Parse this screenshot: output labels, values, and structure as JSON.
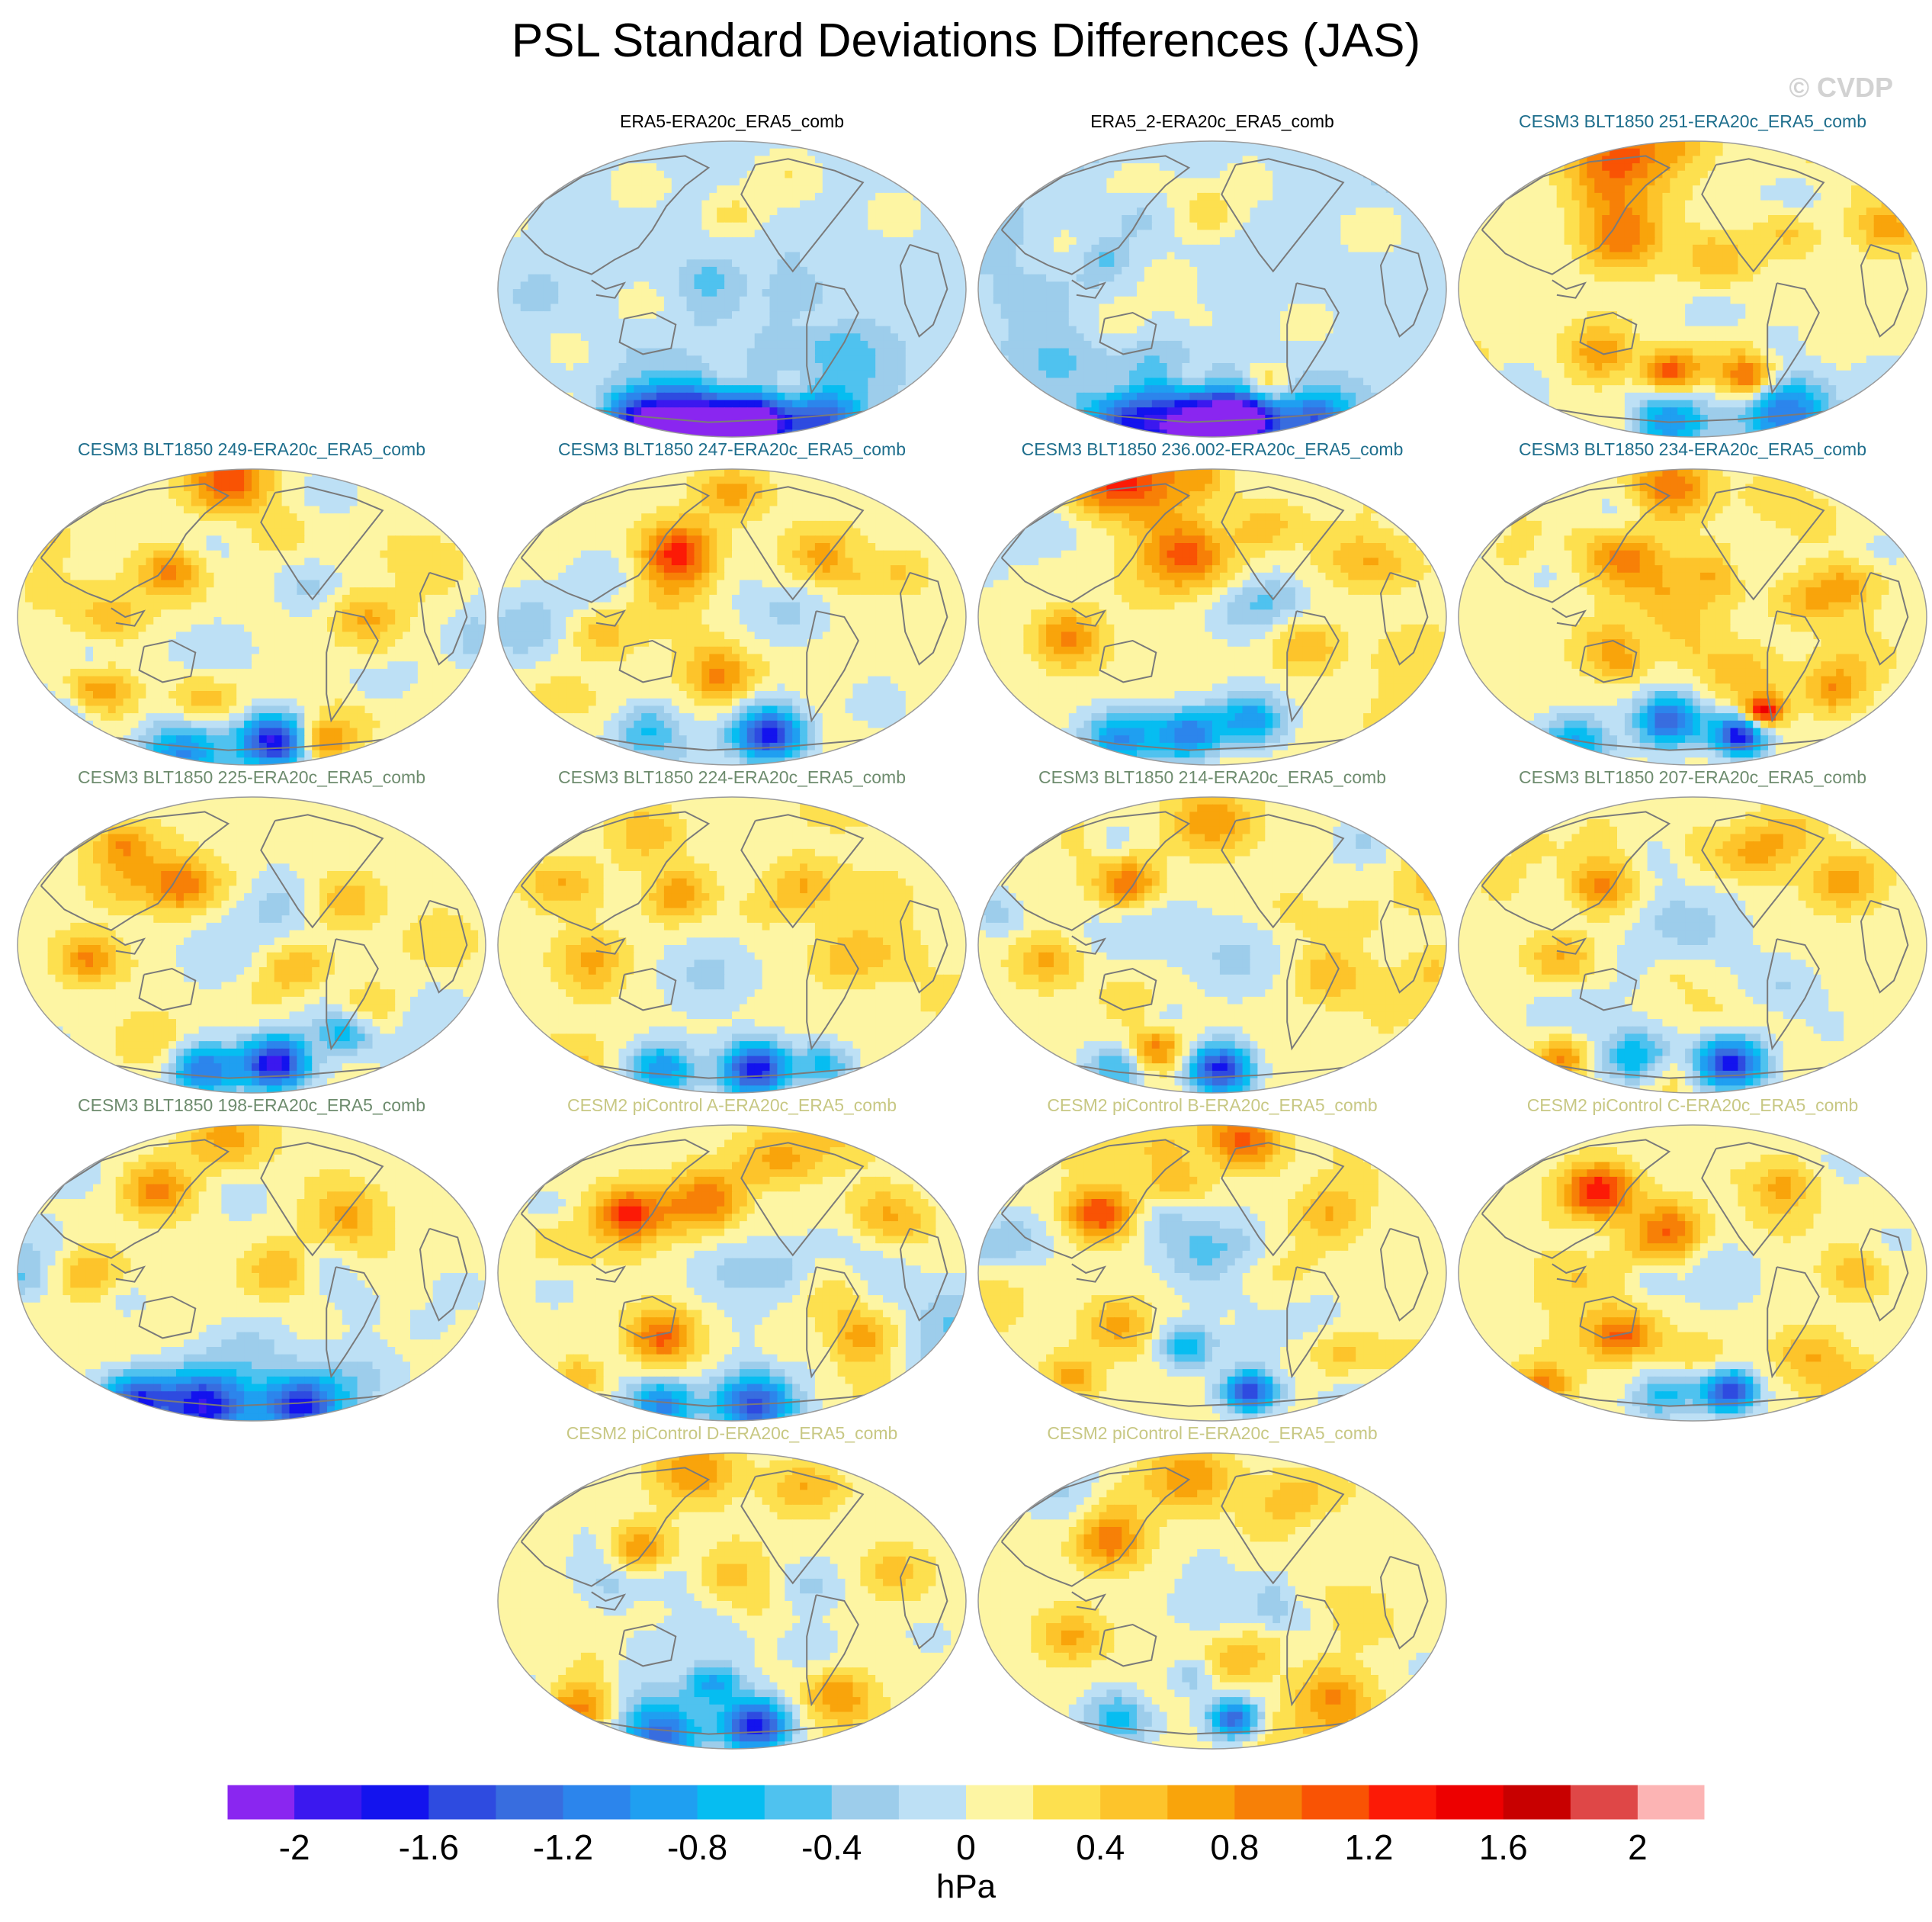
{
  "figure": {
    "title": "PSL Standard Deviations Differences (JAS)",
    "watermark": "© CVDP"
  },
  "chart_data": {
    "type": "heatmap",
    "title": "PSL Standard Deviations Differences (JAS)",
    "projection": "global map (Pacific-centered)",
    "units": "hPa",
    "colorbar": {
      "label": "hPa",
      "levels": [
        -2.2,
        -2,
        -1.8,
        -1.6,
        -1.4,
        -1.2,
        -1,
        -0.8,
        -0.6,
        -0.4,
        -0.2,
        0,
        0.2,
        0.4,
        0.6,
        0.8,
        1,
        1.2,
        1.4,
        1.6,
        1.8,
        2,
        2.2
      ],
      "tick_values": [
        -2,
        -1.6,
        -1.2,
        -0.8,
        -0.4,
        0,
        0.4,
        0.8,
        1.2,
        1.6,
        2
      ],
      "tick_labels": [
        "-2",
        "-1.6",
        "-1.2",
        "-0.8",
        "-0.4",
        "0",
        "0.4",
        "0.8",
        "1.2",
        "1.6",
        "2"
      ],
      "colors": [
        "#8a26f0",
        "#3b18ef",
        "#1313ee",
        "#2e4be0",
        "#386ddf",
        "#2c85ec",
        "#1f9ff1",
        "#06bdf1",
        "#4fc2ef",
        "#9dcdeb",
        "#bde0f5",
        "#fdf5a3",
        "#fde04f",
        "#fdc42b",
        "#f9a40b",
        "#f78007",
        "#f95304",
        "#fc1a06",
        "#ed0000",
        "#c80000",
        "#df4747",
        "#fcb4b4"
      ]
    },
    "panels": [
      {
        "label": "ERA5-ERA20c_ERA5_comb",
        "group": "observations",
        "pattern": "obs1"
      },
      {
        "label": "ERA5_2-ERA20c_ERA5_comb",
        "group": "observations",
        "pattern": "obs2"
      },
      {
        "label": "CESM3 BLT1850 251-ERA20c_ERA5_comb",
        "group": "cesm3-a",
        "pattern": "m1"
      },
      {
        "label": "CESM3 BLT1850 249-ERA20c_ERA5_comb",
        "group": "cesm3-a",
        "pattern": "m2"
      },
      {
        "label": "CESM3 BLT1850 247-ERA20c_ERA5_comb",
        "group": "cesm3-a",
        "pattern": "m3"
      },
      {
        "label": "CESM3 BLT1850 236.002-ERA20c_ERA5_comb",
        "group": "cesm3-a",
        "pattern": "m4"
      },
      {
        "label": "CESM3 BLT1850 234-ERA20c_ERA5_comb",
        "group": "cesm3-a",
        "pattern": "m5"
      },
      {
        "label": "CESM3 BLT1850 225-ERA20c_ERA5_comb",
        "group": "cesm3-b",
        "pattern": "m6"
      },
      {
        "label": "CESM3 BLT1850 224-ERA20c_ERA5_comb",
        "group": "cesm3-b",
        "pattern": "m7"
      },
      {
        "label": "CESM3 BLT1850 214-ERA20c_ERA5_comb",
        "group": "cesm3-b",
        "pattern": "m8"
      },
      {
        "label": "CESM3 BLT1850 207-ERA20c_ERA5_comb",
        "group": "cesm3-b",
        "pattern": "m9"
      },
      {
        "label": "CESM3 BLT1850 198-ERA20c_ERA5_comb",
        "group": "cesm3-b",
        "pattern": "m10"
      },
      {
        "label": "CESM2 piControl A-ERA20c_ERA5_comb",
        "group": "cesm2",
        "pattern": "c1"
      },
      {
        "label": "CESM2 piControl B-ERA20c_ERA5_comb",
        "group": "cesm2",
        "pattern": "c2"
      },
      {
        "label": "CESM2 piControl C-ERA20c_ERA5_comb",
        "group": "cesm2",
        "pattern": "c3"
      },
      {
        "label": "CESM2 piControl D-ERA20c_ERA5_comb",
        "group": "cesm2",
        "pattern": "c4"
      },
      {
        "label": "CESM2 piControl E-ERA20c_ERA5_comb",
        "group": "cesm2",
        "pattern": "c5"
      }
    ]
  },
  "styles": {
    "group_colors": {
      "observations": "#000000",
      "cesm3-a": "#1e6e8c",
      "cesm3-b": "#6e8c6e",
      "cesm2": "#c8c884"
    },
    "watermark_color": "#d2d2d2",
    "coast_color": "#7a7a7a",
    "outline_color": "#9a9a9a"
  }
}
